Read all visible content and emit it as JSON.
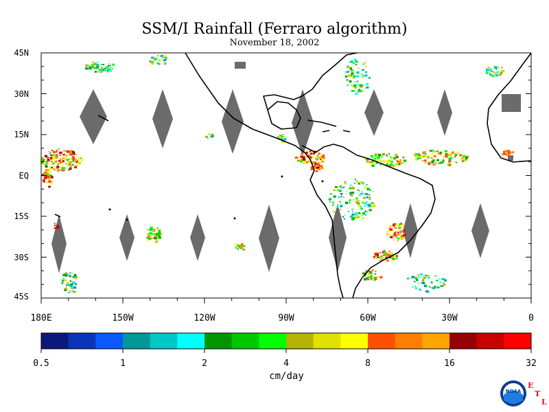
{
  "title": "SSM/I Rainfall (Ferraro algorithm)",
  "date": "November 18, 2002",
  "map": {
    "lat_labels": [
      "45N",
      "30N",
      "15N",
      "EQ",
      "15S",
      "30S",
      "45S"
    ],
    "lon_labels": [
      "180E",
      "150W",
      "120W",
      "90W",
      "60W",
      "30W",
      "0"
    ],
    "extent": {
      "lon_min": -180,
      "lon_max": 0,
      "lat_min": -45,
      "lat_max": 45
    },
    "no_data_color": "#6b6b6b",
    "land_outline_color": "#000000"
  },
  "colorbar": {
    "colors": [
      "#0b1a7a",
      "#0a35b8",
      "#0d57ff",
      "#009999",
      "#00c8c8",
      "#00ffff",
      "#009600",
      "#00c800",
      "#00ff00",
      "#b4b400",
      "#e1e100",
      "#ffff00",
      "#ff5000",
      "#ff7d00",
      "#ffa500",
      "#960000",
      "#c80000",
      "#ff0000"
    ],
    "tick_labels": [
      "0.5",
      "1",
      "2",
      "4",
      "8",
      "16",
      "32"
    ],
    "units": "cm/day"
  },
  "logo": {
    "text": "NOAA",
    "letters": [
      "E",
      "T",
      "L"
    ]
  }
}
